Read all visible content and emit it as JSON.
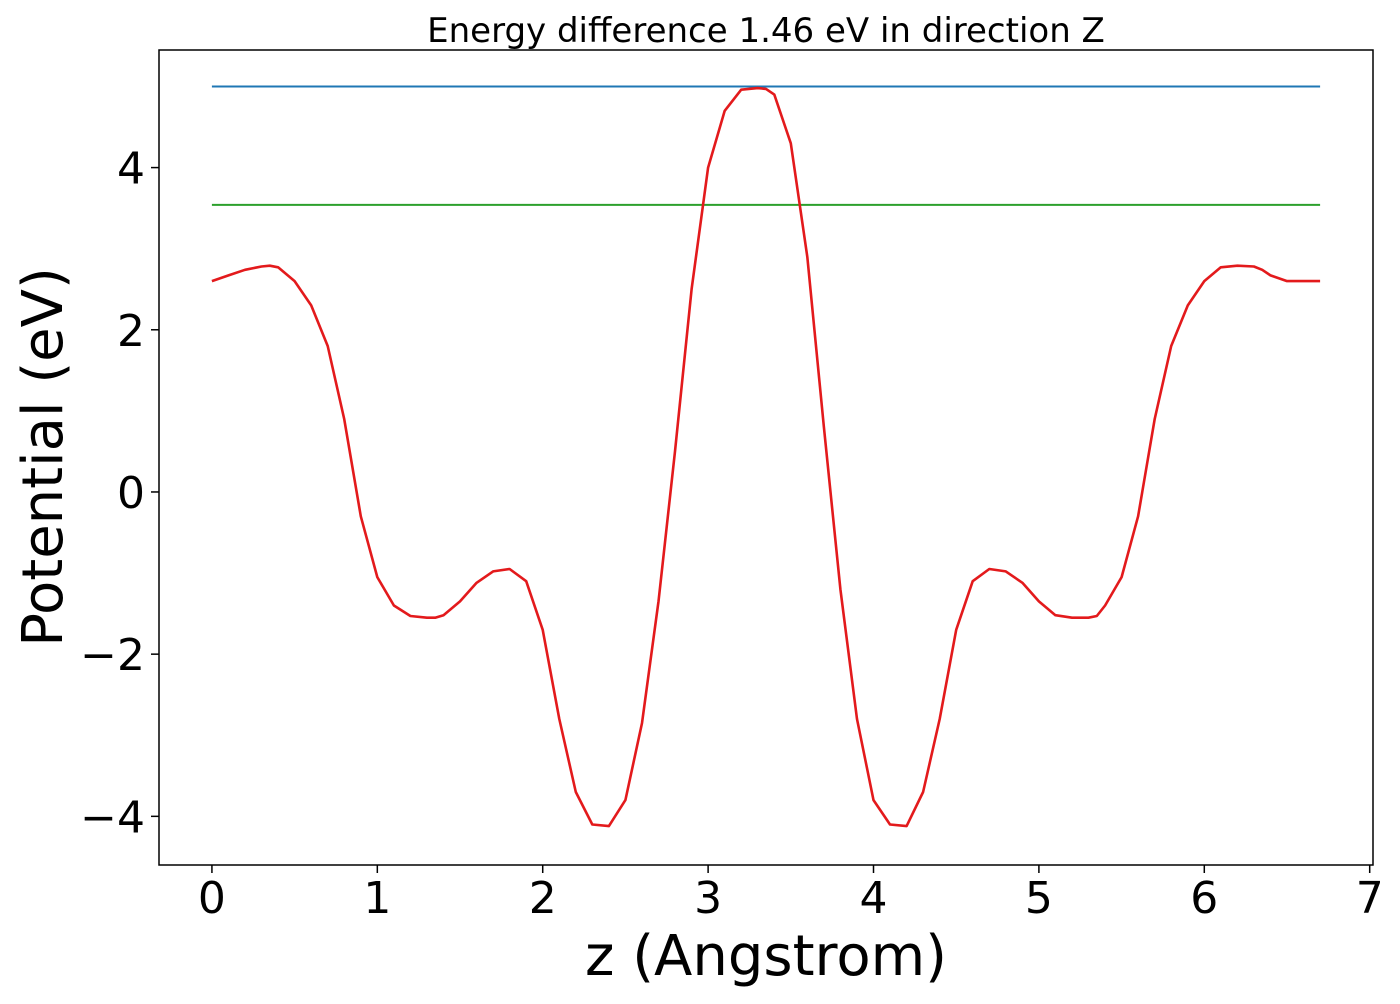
{
  "chart_data": {
    "type": "line",
    "title": "Energy difference 1.46 eV in direction Z",
    "xlabel": "z (Angstrom)",
    "ylabel": "Potential (eV)",
    "xlim": [
      -0.32,
      7.02
    ],
    "ylim": [
      -4.6,
      5.45
    ],
    "x_ticks": [
      0,
      1,
      2,
      3,
      4,
      5,
      6,
      7
    ],
    "x_tick_labels": [
      "0",
      "1",
      "2",
      "3",
      "4",
      "5",
      "6",
      "7"
    ],
    "y_ticks": [
      -4,
      -2,
      0,
      2,
      4
    ],
    "y_tick_labels": [
      "−4",
      "−2",
      "0",
      "2",
      "4"
    ],
    "grid": false,
    "series": [
      {
        "color": "#1f77b4",
        "x": [
          0,
          6.7
        ],
        "y": [
          5.0,
          5.0
        ]
      },
      {
        "color": "#2ca02c",
        "x": [
          0,
          6.7
        ],
        "y": [
          3.54,
          3.54
        ]
      },
      {
        "color": "#e31a1c",
        "x": [
          0,
          0.1,
          0.2,
          0.3,
          0.35,
          0.4,
          0.5,
          0.6,
          0.7,
          0.8,
          0.9,
          1.0,
          1.1,
          1.2,
          1.3,
          1.35,
          1.4,
          1.5,
          1.6,
          1.7,
          1.8,
          1.9,
          2.0,
          2.1,
          2.2,
          2.3,
          2.4,
          2.5,
          2.6,
          2.7,
          2.8,
          2.9,
          3.0,
          3.1,
          3.2,
          3.3,
          3.35,
          3.4,
          3.5,
          3.6,
          3.7,
          3.8,
          3.9,
          4.0,
          4.1,
          4.2,
          4.3,
          4.4,
          4.5,
          4.6,
          4.7,
          4.8,
          4.9,
          5.0,
          5.1,
          5.2,
          5.3,
          5.35,
          5.4,
          5.5,
          5.6,
          5.7,
          5.8,
          5.9,
          6.0,
          6.1,
          6.2,
          6.3,
          6.35,
          6.4,
          6.5,
          6.6,
          6.7
        ],
        "y": [
          2.6,
          2.67,
          2.74,
          2.78,
          2.79,
          2.77,
          2.6,
          2.3,
          1.8,
          0.9,
          -0.3,
          -1.05,
          -1.4,
          -1.53,
          -1.55,
          -1.55,
          -1.52,
          -1.35,
          -1.12,
          -0.98,
          -0.95,
          -1.1,
          -1.7,
          -2.8,
          -3.7,
          -4.1,
          -4.12,
          -3.8,
          -2.85,
          -1.35,
          0.5,
          2.5,
          4.0,
          4.7,
          4.96,
          4.98,
          4.97,
          4.9,
          4.3,
          2.9,
          0.8,
          -1.2,
          -2.8,
          -3.8,
          -4.1,
          -4.12,
          -3.7,
          -2.8,
          -1.7,
          -1.1,
          -0.95,
          -0.98,
          -1.12,
          -1.35,
          -1.52,
          -1.55,
          -1.55,
          -1.53,
          -1.4,
          -1.05,
          -0.3,
          0.9,
          1.8,
          2.3,
          2.6,
          2.77,
          2.79,
          2.78,
          2.74,
          2.67,
          2.6,
          2.6,
          2.6
        ]
      }
    ]
  }
}
